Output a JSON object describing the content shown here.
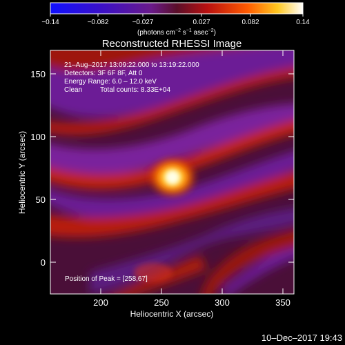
{
  "colorbar": {
    "tick_labels": [
      "−0.14",
      "−0.082",
      "−0.027",
      "0.027",
      "0.082",
      "0.14"
    ],
    "units_main": "(photons cm",
    "units_sup1": "−2",
    "units_mid1": " s",
    "units_sup2": "−1",
    "units_mid2": " asec",
    "units_sup3": "−2",
    "units_end": ")"
  },
  "plot": {
    "title": "Reconstructed RHESSI Image",
    "xlabel": "Heliocentric X (arcsec)",
    "ylabel": "Heliocentric Y (arcsec)",
    "x_ticks": [
      "200",
      "250",
      "300",
      "350"
    ],
    "y_ticks": [
      "0",
      "50",
      "100",
      "150"
    ]
  },
  "info": {
    "line1": "21–Aug–2017 13:09:22.000 to 13:19:22.000",
    "line2": "Detectors: 3F 6F 8F, Att 0",
    "line3": "Energy Range: 6.0 – 12.0 keV",
    "line4_a": "Clean",
    "line4_b": "Total counts: 8.33E+04",
    "peak": "Position of Peak = [258,67]"
  },
  "footer": {
    "timestamp": "10–Dec–2017 19:43"
  }
}
